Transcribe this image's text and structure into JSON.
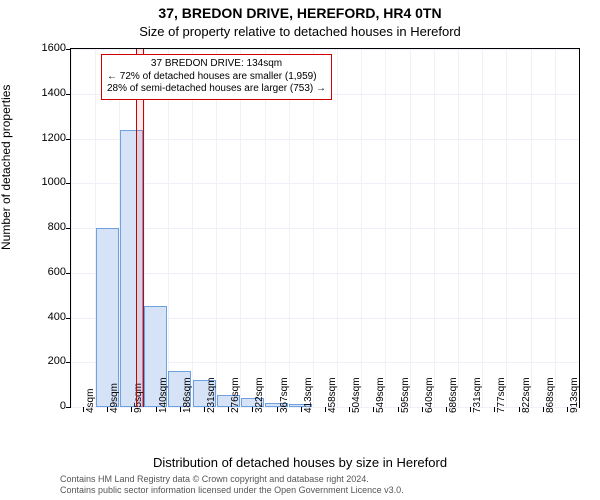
{
  "title_line1": "37, BREDON DRIVE, HEREFORD, HR4 0TN",
  "title_line2": "Size of property relative to detached houses in Hereford",
  "y_axis_label": "Number of detached properties",
  "x_axis_label": "Distribution of detached houses by size in Hereford",
  "credits_line1": "Contains HM Land Registry data © Crown copyright and database right 2024.",
  "credits_line2": "Contains public sector information licensed under the Open Government Licence v3.0.",
  "chart": {
    "type": "histogram",
    "ylim": [
      0,
      1600
    ],
    "ytick_step": 200,
    "background_color": "#ffffff",
    "grid_color": "#eef2f8",
    "bar_fill": "#d6e3f7",
    "bar_border": "#6fa1e0",
    "marker_border": "#d00000",
    "marker_fill": "rgba(255,0,0,0.07)",
    "x_categories": [
      "4sqm",
      "49sqm",
      "95sqm",
      "140sqm",
      "186sqm",
      "231sqm",
      "276sqm",
      "322sqm",
      "367sqm",
      "413sqm",
      "458sqm",
      "504sqm",
      "549sqm",
      "595sqm",
      "640sqm",
      "686sqm",
      "731sqm",
      "777sqm",
      "822sqm",
      "868sqm",
      "913sqm"
    ],
    "values": [
      0,
      800,
      1240,
      450,
      160,
      120,
      55,
      40,
      20,
      15,
      0,
      0,
      0,
      0,
      0,
      0,
      0,
      0,
      0,
      0,
      0
    ],
    "marker_index": 2,
    "callout": {
      "line1": "37 BREDON DRIVE: 134sqm",
      "line2": "← 72% of detached houses are smaller (1,959)",
      "line3": "28% of semi-detached houses are larger (753) →"
    },
    "title_fontsize": 14,
    "subtitle_fontsize": 13,
    "label_fontsize": 12,
    "tick_fontsize": 11
  }
}
